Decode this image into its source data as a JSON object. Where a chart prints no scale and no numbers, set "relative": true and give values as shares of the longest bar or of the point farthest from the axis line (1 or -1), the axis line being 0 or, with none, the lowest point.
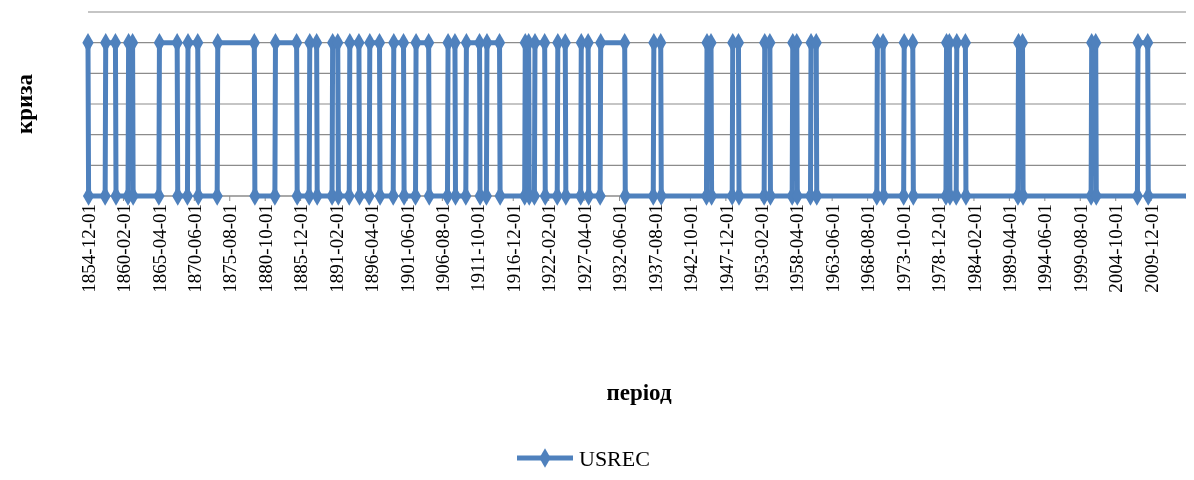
{
  "chart_data": {
    "type": "line",
    "xlabel": "період",
    "ylabel": "криза",
    "grid": "y",
    "legend": "bottom",
    "marker": "diamond",
    "line_style": "solid",
    "tick_labels": "x",
    "relative": true,
    "xlim": [
      "1854-12",
      "2015-08"
    ],
    "xticks": [
      {
        "value": "1854-12",
        "label": "1854-12-01"
      },
      {
        "value": "1860-02",
        "label": "1860-02-01"
      },
      {
        "value": "1865-04",
        "label": "1865-04-01"
      },
      {
        "value": "1870-06",
        "label": "1870-06-01"
      },
      {
        "value": "1875-08",
        "label": "1875-08-01"
      },
      {
        "value": "1880-10",
        "label": "1880-10-01"
      },
      {
        "value": "1885-12",
        "label": "1885-12-01"
      },
      {
        "value": "1891-02",
        "label": "1891-02-01"
      },
      {
        "value": "1896-04",
        "label": "1896-04-01"
      },
      {
        "value": "1901-06",
        "label": "1901-06-01"
      },
      {
        "value": "1906-08",
        "label": "1906-08-01"
      },
      {
        "value": "1911-10",
        "label": "1911-10-01"
      },
      {
        "value": "1916-12",
        "label": "1916-12-01"
      },
      {
        "value": "1922-02",
        "label": "1922-02-01"
      },
      {
        "value": "1927-04",
        "label": "1927-04-01"
      },
      {
        "value": "1932-06",
        "label": "1932-06-01"
      },
      {
        "value": "1937-08",
        "label": "1937-08-01"
      },
      {
        "value": "1942-10",
        "label": "1942-10-01"
      },
      {
        "value": "1947-12",
        "label": "1947-12-01"
      },
      {
        "value": "1953-02",
        "label": "1953-02-01"
      },
      {
        "value": "1958-04",
        "label": "1958-04-01"
      },
      {
        "value": "1963-06",
        "label": "1963-06-01"
      },
      {
        "value": "1968-08",
        "label": "1968-08-01"
      },
      {
        "value": "1973-10",
        "label": "1973-10-01"
      },
      {
        "value": "1978-12",
        "label": "1978-12-01"
      },
      {
        "value": "1984-02",
        "label": "1984-02-01"
      },
      {
        "value": "1989-04",
        "label": "1989-04-01"
      },
      {
        "value": "1994-06",
        "label": "1994-06-01"
      },
      {
        "value": "1999-08",
        "label": "1999-08-01"
      },
      {
        "value": "2004-10",
        "label": "2004-10-01"
      },
      {
        "value": "2009-12",
        "label": "2009-12-01"
      }
    ],
    "x": [
      "1854-12",
      "1855-01",
      "1857-06",
      "1857-07",
      "1858-12",
      "1859-01",
      "1860-10",
      "1860-11",
      "1861-06",
      "1861-07",
      "1865-04",
      "1865-05",
      "1867-12",
      "1868-01",
      "1869-06",
      "1869-07",
      "1870-12",
      "1871-01",
      "1873-10",
      "1873-11",
      "1879-03",
      "1879-04",
      "1882-03",
      "1882-04",
      "1885-05",
      "1885-06",
      "1887-03",
      "1887-04",
      "1888-04",
      "1888-05",
      "1890-07",
      "1890-08",
      "1891-05",
      "1891-06",
      "1893-01",
      "1893-02",
      "1894-06",
      "1894-07",
      "1895-12",
      "1896-01",
      "1897-06",
      "1897-07",
      "1899-06",
      "1899-07",
      "1900-12",
      "1901-01",
      "1902-09",
      "1902-10",
      "1904-08",
      "1904-09",
      "1907-05",
      "1907-06",
      "1908-06",
      "1908-07",
      "1910-01",
      "1910-02",
      "1912-01",
      "1912-02",
      "1913-01",
      "1913-02",
      "1914-12",
      "1915-01",
      "1918-08",
      "1918-09",
      "1919-03",
      "1919-04",
      "1920-01",
      "1920-02",
      "1921-07",
      "1921-08",
      "1923-05",
      "1923-06",
      "1924-07",
      "1924-08",
      "1926-10",
      "1926-11",
      "1927-11",
      "1927-12",
      "1929-08",
      "1929-09",
      "1933-03",
      "1933-04",
      "1937-05",
      "1937-06",
      "1938-06",
      "1938-07",
      "1945-02",
      "1945-03",
      "1945-10",
      "1945-11",
      "1948-11",
      "1948-12",
      "1949-10",
      "1949-11",
      "1953-07",
      "1953-08",
      "1954-05",
      "1954-06",
      "1957-08",
      "1957-09",
      "1958-04",
      "1958-05",
      "1960-04",
      "1960-05",
      "1961-02",
      "1961-03",
      "1969-12",
      "1970-01",
      "1970-11",
      "1970-12",
      "1973-11",
      "1973-12",
      "1975-03",
      "1975-04",
      "1980-01",
      "1980-02",
      "1980-07",
      "1980-08",
      "1981-07",
      "1981-08",
      "1982-11",
      "1982-12",
      "1990-07",
      "1990-08",
      "1991-03",
      "1991-04",
      "2001-03",
      "2001-04",
      "2001-11",
      "2001-12",
      "2007-12",
      "2008-01",
      "2009-06",
      "2009-07",
      "2015-08"
    ],
    "series": [
      {
        "name": "USREC",
        "color": "#4f81bd",
        "values": [
          1,
          0,
          0,
          1,
          1,
          0,
          0,
          1,
          1,
          0,
          0,
          1,
          1,
          0,
          0,
          1,
          1,
          0,
          0,
          1,
          1,
          0,
          0,
          1,
          1,
          0,
          0,
          1,
          1,
          0,
          0,
          1,
          1,
          0,
          0,
          1,
          1,
          0,
          0,
          1,
          1,
          0,
          0,
          1,
          1,
          0,
          0,
          1,
          1,
          0,
          0,
          1,
          1,
          0,
          0,
          1,
          1,
          0,
          0,
          1,
          1,
          0,
          0,
          1,
          1,
          0,
          0,
          1,
          1,
          0,
          0,
          1,
          1,
          0,
          0,
          1,
          1,
          0,
          0,
          1,
          1,
          0,
          0,
          1,
          1,
          0,
          0,
          1,
          1,
          0,
          0,
          1,
          1,
          0,
          0,
          1,
          1,
          0,
          0,
          1,
          1,
          0,
          0,
          1,
          1,
          0,
          0,
          1,
          1,
          0,
          0,
          1,
          1,
          0,
          0,
          1,
          1,
          0,
          0,
          1,
          1,
          0,
          0,
          1,
          1,
          0,
          0,
          1,
          1,
          0,
          0,
          1,
          1,
          0,
          0
        ]
      }
    ]
  }
}
